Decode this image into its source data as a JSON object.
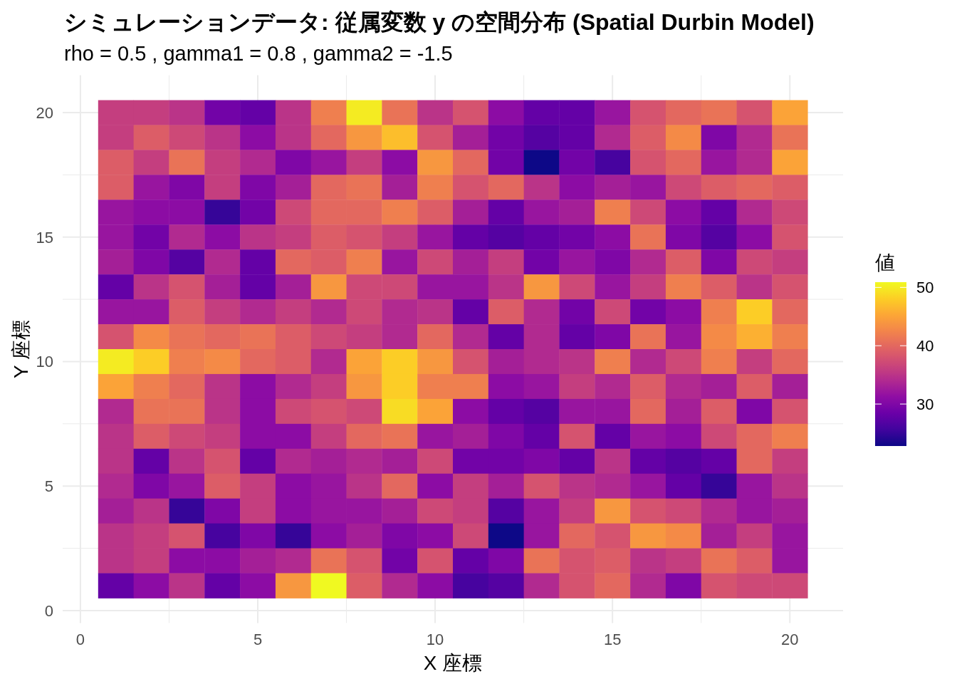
{
  "chart_data": {
    "type": "heatmap",
    "title": "シミュレーションデータ: 従属変数 y の空間分布 (Spatial Durbin Model)",
    "subtitle": "rho = 0.5 , gamma1 = 0.8 , gamma2 = -1.5",
    "xlabel": "X 座標",
    "ylabel": "Y 座標",
    "clabel": "値",
    "x": [
      1,
      2,
      3,
      4,
      5,
      6,
      7,
      8,
      9,
      10,
      11,
      12,
      13,
      14,
      15,
      16,
      17,
      18,
      19,
      20
    ],
    "y": [
      20,
      19,
      18,
      17,
      16,
      15,
      14,
      13,
      12,
      11,
      10,
      9,
      8,
      7,
      6,
      5,
      4,
      3,
      2,
      1
    ],
    "cells": [
      [
        36,
        36,
        35,
        29,
        28,
        35,
        42,
        50,
        41,
        35,
        38,
        31,
        28,
        28,
        32,
        38,
        40,
        41,
        38,
        45
      ],
      [
        36,
        39,
        37,
        35,
        31,
        35,
        40,
        44,
        47,
        38,
        33,
        29,
        27,
        28,
        34,
        39,
        43,
        30,
        34,
        41
      ],
      [
        39,
        36,
        41,
        36,
        34,
        30,
        32,
        36,
        31,
        44,
        40,
        29,
        22.8,
        29,
        26,
        38,
        40,
        32,
        34,
        45
      ],
      [
        39,
        32,
        30,
        36,
        30,
        33,
        40,
        41,
        33,
        42,
        38,
        40,
        35,
        31,
        33,
        32,
        37,
        39,
        40,
        39
      ],
      [
        32,
        31,
        31,
        25,
        29,
        37,
        40,
        40,
        42,
        39,
        33,
        28,
        32,
        33,
        42,
        37,
        31,
        28,
        34,
        37
      ],
      [
        32,
        29,
        34,
        31,
        35,
        36,
        39,
        38,
        36,
        32,
        28,
        27,
        28,
        29,
        31,
        41,
        30,
        27,
        31,
        38
      ],
      [
        33,
        30,
        27,
        34,
        28,
        40,
        39,
        42,
        32,
        37,
        33,
        36,
        29,
        32,
        30,
        34,
        39,
        30,
        37,
        36
      ],
      [
        28,
        35,
        38,
        33,
        28,
        33,
        44,
        37,
        37,
        32,
        32,
        35,
        44,
        37,
        32,
        36,
        42,
        39,
        35,
        38
      ],
      [
        32,
        32,
        39,
        36,
        34,
        36,
        34,
        37,
        34,
        35,
        28,
        39,
        34,
        29,
        37,
        29,
        31,
        42,
        48,
        40
      ],
      [
        38,
        43,
        41,
        40,
        41,
        39,
        37,
        36,
        34,
        40,
        34,
        28,
        34,
        28,
        30,
        41,
        32,
        43,
        46,
        42
      ],
      [
        50,
        48,
        42,
        43,
        40,
        39,
        34,
        45,
        48,
        44,
        38,
        33,
        34,
        35,
        42,
        34,
        37,
        42,
        36,
        40
      ],
      [
        45,
        42,
        40,
        35,
        31,
        34,
        36,
        44,
        48,
        42,
        42,
        31,
        32,
        36,
        34,
        39,
        34,
        33,
        39,
        33
      ],
      [
        34,
        41,
        41,
        35,
        31,
        37,
        38,
        37,
        49,
        45,
        31,
        28,
        27,
        32,
        32,
        40,
        33,
        39,
        30,
        38
      ],
      [
        35,
        39,
        37,
        36,
        31,
        31,
        36,
        40,
        41,
        32,
        33,
        30,
        28,
        38,
        28,
        32,
        31,
        37,
        40,
        42
      ],
      [
        35,
        28,
        35,
        38,
        28,
        34,
        33,
        34,
        33,
        37,
        29,
        29,
        30,
        28,
        35,
        28,
        27,
        28,
        40,
        36
      ],
      [
        34,
        30,
        32,
        39,
        36,
        31,
        32,
        35,
        40,
        31,
        36,
        33,
        38,
        35,
        34,
        32,
        28,
        25,
        32,
        35
      ],
      [
        33,
        35,
        25,
        30,
        36,
        31,
        32,
        32,
        33,
        37,
        36,
        27,
        32,
        36,
        44,
        38,
        37,
        34,
        32,
        33
      ],
      [
        35,
        36,
        38,
        26,
        30,
        25,
        31,
        33,
        30,
        31,
        37,
        22.8,
        32,
        40,
        38,
        44,
        43,
        33,
        36,
        32
      ],
      [
        35,
        36,
        31,
        31,
        33,
        34,
        41,
        38,
        29,
        38,
        28,
        30,
        41,
        38,
        39,
        35,
        36,
        41,
        39,
        32
      ],
      [
        28,
        31,
        35,
        28,
        31,
        44,
        50.9,
        39,
        34,
        31,
        26,
        27,
        34,
        38,
        40,
        34,
        30,
        38,
        37,
        37
      ]
    ],
    "xlim": [
      -0.5,
      21.5
    ],
    "ylim": [
      -0.5,
      21.5
    ],
    "xticks": [
      0,
      5,
      10,
      15,
      20
    ],
    "yticks": [
      0,
      5,
      10,
      15,
      20
    ],
    "clim": [
      22.8,
      50.9
    ],
    "cticks": [
      30,
      40,
      50
    ],
    "grid": true
  }
}
